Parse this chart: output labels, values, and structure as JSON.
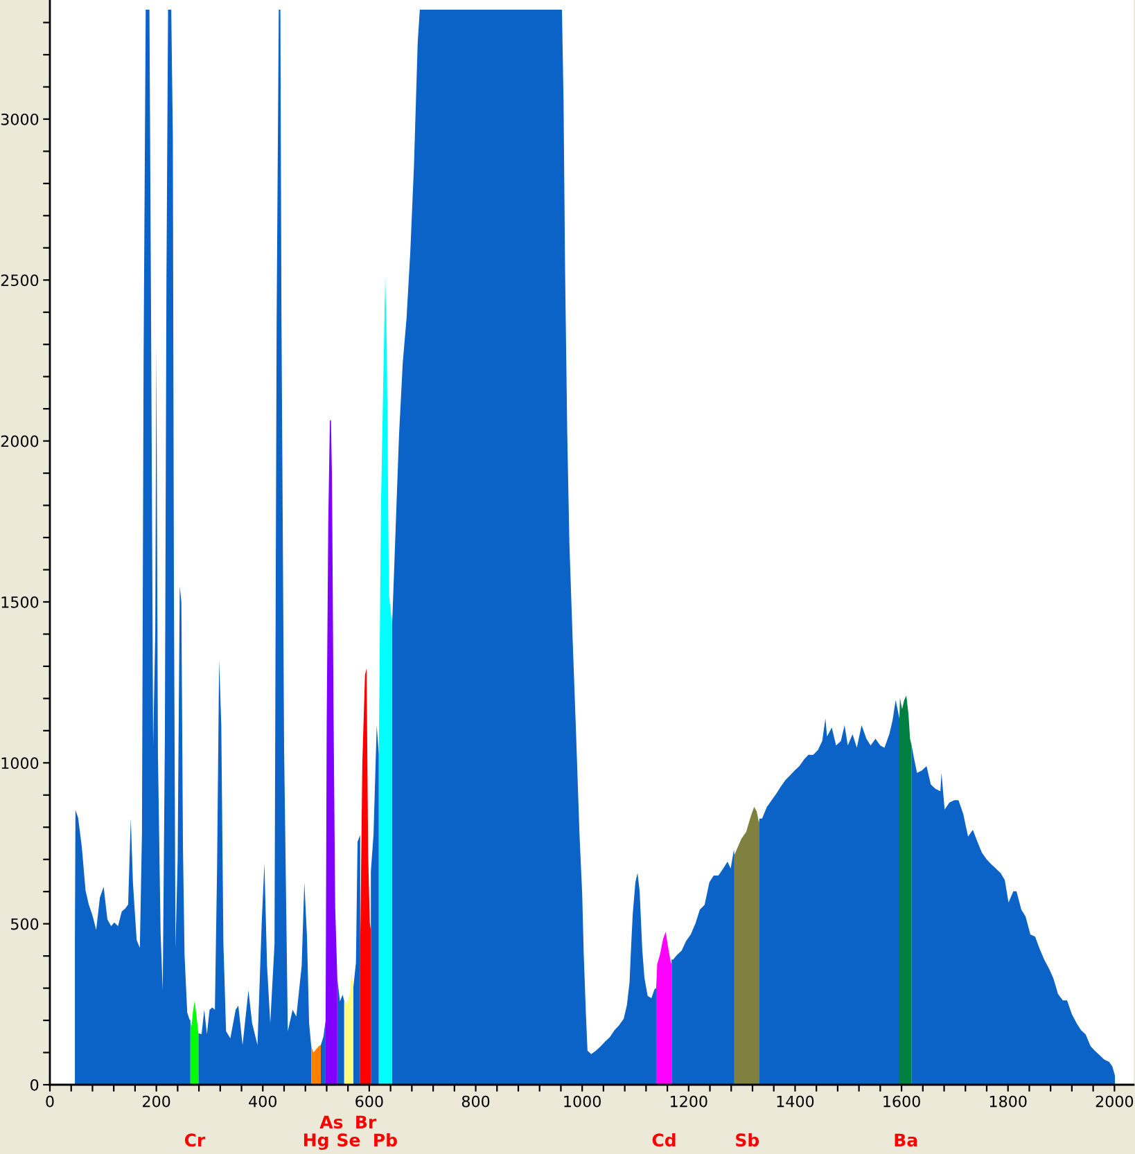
{
  "chart_data": {
    "type": "area",
    "xlim": [
      0,
      2036
    ],
    "ylim": [
      0,
      3370
    ],
    "xticks": [
      0,
      {
        "value": 40,
        "label": null
      },
      {
        "value": 80,
        "label": null
      },
      {
        "value": 120,
        "label": null
      },
      {
        "value": 160,
        "label": null
      },
      200,
      {
        "value": 240,
        "label": null
      },
      {
        "value": 280,
        "label": null
      },
      {
        "value": 320,
        "label": null
      },
      {
        "value": 360,
        "label": null
      },
      400,
      {
        "value": 440,
        "label": null
      },
      {
        "value": 480,
        "label": null
      },
      {
        "value": 520,
        "label": null
      },
      {
        "value": 560,
        "label": null
      },
      600,
      {
        "value": 640,
        "label": null
      },
      {
        "value": 680,
        "label": null
      },
      {
        "value": 720,
        "label": null
      },
      {
        "value": 760,
        "label": null
      },
      800,
      {
        "value": 840,
        "label": null
      },
      {
        "value": 880,
        "label": null
      },
      {
        "value": 920,
        "label": null
      },
      {
        "value": 960,
        "label": null
      },
      1000,
      {
        "value": 1040,
        "label": null
      },
      {
        "value": 1080,
        "label": null
      },
      {
        "value": 1120,
        "label": null
      },
      {
        "value": 1160,
        "label": null
      },
      1200,
      {
        "value": 1240,
        "label": null
      },
      {
        "value": 1280,
        "label": null
      },
      {
        "value": 1320,
        "label": null
      },
      {
        "value": 1360,
        "label": null
      },
      1400,
      {
        "value": 1440,
        "label": null
      },
      {
        "value": 1480,
        "label": null
      },
      {
        "value": 1520,
        "label": null
      },
      {
        "value": 1560,
        "label": null
      },
      1600,
      {
        "value": 1640,
        "label": null
      },
      {
        "value": 1680,
        "label": null
      },
      {
        "value": 1720,
        "label": null
      },
      {
        "value": 1760,
        "label": null
      },
      1800,
      {
        "value": 1840,
        "label": null
      },
      {
        "value": 1880,
        "label": null
      },
      {
        "value": 1920,
        "label": null
      },
      {
        "value": 1960,
        "label": null
      },
      2000
    ],
    "yticks": [
      0,
      {
        "value": 100,
        "label": null
      },
      {
        "value": 200,
        "label": null
      },
      {
        "value": 300,
        "label": null
      },
      {
        "value": 400,
        "label": null
      },
      500,
      {
        "value": 600,
        "label": null
      },
      {
        "value": 700,
        "label": null
      },
      {
        "value": 800,
        "label": null
      },
      {
        "value": 900,
        "label": null
      },
      1000,
      {
        "value": 1100,
        "label": null
      },
      {
        "value": 1200,
        "label": null
      },
      {
        "value": 1300,
        "label": null
      },
      {
        "value": 1400,
        "label": null
      },
      1500,
      {
        "value": 1600,
        "label": null
      },
      {
        "value": 1700,
        "label": null
      },
      {
        "value": 1800,
        "label": null
      },
      {
        "value": 1900,
        "label": null
      },
      2000,
      {
        "value": 2100,
        "label": null
      },
      {
        "value": 2200,
        "label": null
      },
      {
        "value": 2300,
        "label": null
      },
      {
        "value": 2400,
        "label": null
      },
      2500,
      {
        "value": 2600,
        "label": null
      },
      {
        "value": 2700,
        "label": null
      },
      {
        "value": 2800,
        "label": null
      },
      {
        "value": 2900,
        "label": null
      },
      3000,
      {
        "value": 3100,
        "label": null
      },
      {
        "value": 3200,
        "label": null
      },
      {
        "value": 3300,
        "label": null
      }
    ],
    "series": [
      {
        "color": "#0c63c7",
        "x": [
          47,
          48,
          53,
          60,
          67,
          73,
          80,
          87,
          94,
          101,
          108,
          115,
          121,
          128,
          135,
          142,
          147,
          152,
          156,
          163,
          169,
          173,
          176,
          180,
          187,
          190,
          194,
          198,
          200,
          203,
          208,
          212,
          216,
          219,
          222,
          228,
          231,
          233,
          236,
          240,
          244,
          247,
          250,
          253,
          258,
          262,
          264,
          270,
          279,
          285,
          290,
          295,
          300,
          305,
          310,
          314,
          318,
          322,
          326,
          331,
          339,
          349,
          354,
          362,
          373,
          380,
          390,
          398,
          403,
          408,
          414,
          422,
          426,
          430,
          433,
          435,
          440,
          447,
          456,
          463,
          473,
          478,
          483,
          487,
          491,
          500,
          509,
          514,
          518,
          529,
          540,
          545,
          550,
          553,
          560,
          570,
          575,
          578,
          583,
          593,
          603,
          608,
          614,
          618,
          630,
          643,
          649,
          656,
          663,
          670,
          677,
          684,
          691,
          695,
          962,
          965,
          968,
          972,
          976,
          982,
          988,
          995,
          1000,
          1003,
          1007,
          1010,
          1017,
          1026,
          1035,
          1043,
          1052,
          1061,
          1069,
          1078,
          1084,
          1089,
          1092,
          1095,
          1100,
          1104,
          1108,
          1113,
          1117,
          1123,
          1130,
          1136,
          1139,
          1150,
          1168,
          1171,
          1178,
          1187,
          1195,
          1204,
          1213,
          1221,
          1230,
          1239,
          1247,
          1256,
          1265,
          1273,
          1279,
          1285,
          1286,
          1310,
          1333,
          1338,
          1347,
          1356,
          1365,
          1373,
          1382,
          1391,
          1399,
          1408,
          1417,
          1425,
          1434,
          1443,
          1451,
          1457,
          1460,
          1469,
          1477,
          1486,
          1493,
          1499,
          1508,
          1516,
          1525,
          1534,
          1542,
          1551,
          1560,
          1568,
          1577,
          1583,
          1589,
          1596,
          1608,
          1619,
          1623,
          1629,
          1638,
          1647,
          1655,
          1664,
          1673,
          1675,
          1681,
          1690,
          1699,
          1707,
          1716,
          1725,
          1734,
          1742,
          1751,
          1760,
          1768,
          1777,
          1786,
          1794,
          1801,
          1810,
          1816,
          1825,
          1833,
          1842,
          1851,
          1859,
          1868,
          1877,
          1885,
          1894,
          1903,
          1911,
          1920,
          1929,
          1937,
          1946,
          1955,
          1963,
          1972,
          1981,
          1990,
          1996,
          2001
        ],
        "values": [
          450,
          853,
          830,
          738,
          603,
          560,
          526,
          481,
          582,
          615,
          514,
          493,
          504,
          493,
          538,
          548,
          560,
          827,
          628,
          450,
          425,
          785,
          2236,
          3340,
          3340,
          2414,
          1052,
          1409,
          2300,
          1027,
          471,
          293,
          1073,
          2503,
          3340,
          3340,
          2949,
          1540,
          424,
          700,
          1549,
          1500,
          738,
          403,
          225,
          204,
          200,
          null,
          160,
          157,
          233,
          157,
          233,
          240,
          233,
          663,
          1320,
          1116,
          437,
          166,
          144,
          233,
          246,
          123,
          293,
          191,
          123,
          505,
          688,
          369,
          191,
          437,
          2380,
          3340,
          3340,
          2402,
          1048,
          166,
          233,
          212,
          369,
          629,
          460,
          191,
          120,
          null,
          123,
          150,
          200,
          null,
          330,
          259,
          280,
          260,
          null,
          301,
          380,
          755,
          776,
          null,
          663,
          777,
          1116,
          1027,
          null,
          1430,
          1703,
          2020,
          2245,
          2380,
          2584,
          2855,
          3238,
          3340,
          3340,
          3057,
          2516,
          2020,
          1681,
          1388,
          1116,
          777,
          594,
          403,
          221,
          106,
          95,
          106,
          120,
          134,
          148,
          170,
          184,
          205,
          247,
          318,
          431,
          530,
          629,
          658,
          601,
          417,
          332,
          276,
          269,
          297,
          300,
          null,
          389,
          389,
          403,
          417,
          446,
          467,
          502,
          544,
          559,
          629,
          650,
          650,
          672,
          693,
          672,
          730,
          714,
          null,
          827,
          827,
          863,
          884,
          905,
          926,
          947,
          962,
          976,
          990,
          1011,
          1025,
          1025,
          1040,
          1068,
          1138,
          1082,
          1110,
          1054,
          1068,
          1117,
          1054,
          1089,
          1047,
          1117,
          1075,
          1054,
          1075,
          1054,
          1047,
          1089,
          1131,
          1195,
          1138,
          null,
          1054,
          1018,
          969,
          976,
          990,
          933,
          919,
          912,
          969,
          855,
          877,
          884,
          884,
          841,
          771,
          792,
          757,
          721,
          700,
          686,
          672,
          658,
          636,
          566,
          601,
          601,
          544,
          523,
          467,
          460,
          424,
          389,
          361,
          332,
          282,
          262,
          262,
          219,
          191,
          170,
          156,
          120,
          106,
          92,
          78,
          71,
          57,
          28
        ]
      },
      {
        "color": "#00ff00",
        "x": [
          264,
          266,
          269,
          272,
          275,
          279
        ],
        "values": [
          200,
          180,
          230,
          260,
          220,
          160
        ]
      },
      {
        "color": "#ff8000",
        "x": [
          491,
          495,
          500,
          505,
          509
        ],
        "values": [
          120,
          100,
          110,
          120,
          123
        ]
      },
      {
        "color": "#8000ff",
        "x": [
          518,
          520,
          523,
          526,
          528,
          530,
          533,
          536,
          540
        ],
        "values": [
          200,
          1116,
          1748,
          2062,
          2066,
          1884,
          1137,
          552,
          330
        ]
      },
      {
        "color": "#ffff80",
        "x": [
          553,
          558,
          563,
          567,
          570
        ],
        "values": [
          260,
          250,
          280,
          348,
          301
        ]
      },
      {
        "color": "#ff0000",
        "x": [
          583,
          587,
          592,
          595,
          598,
          601,
          603
        ],
        "values": [
          437,
          1001,
          1273,
          1294,
          709,
          505,
          480
        ]
      },
      {
        "color": "#00ffff",
        "x": [
          618,
          622,
          626,
          630,
          633,
          637,
          643
        ],
        "values": [
          1027,
          1794,
          2154,
          2510,
          2290,
          1523,
          1430
        ]
      },
      {
        "color": "#ff00ff",
        "x": [
          1139,
          1141,
          1146,
          1152,
          1157,
          1161,
          1167,
          1168
        ],
        "values": [
          300,
          375,
          403,
          453,
          475,
          431,
          375,
          389
        ]
      },
      {
        "color": "#808040",
        "x": [
          1286,
          1299,
          1308,
          1317,
          1323,
          1328,
          1332,
          1333
        ],
        "values": [
          714,
          764,
          785,
          835,
          863,
          849,
          815,
          827
        ]
      },
      {
        "color": "#008040",
        "x": [
          1596,
          1597,
          1601,
          1605,
          1609,
          1613,
          1616,
          1619
        ],
        "values": [
          1138,
          1202,
          1167,
          1195,
          1209,
          1152,
          1075,
          1054
        ]
      }
    ],
    "annotations": [
      {
        "text": "Cr",
        "x": 272,
        "y": 0
      },
      {
        "text": "Hg",
        "x": 500,
        "y": 0
      },
      {
        "text": "As",
        "x": 529,
        "y": 0
      },
      {
        "text": "Se",
        "x": 561,
        "y": 0
      },
      {
        "text": "Br",
        "x": 593,
        "y": 0
      },
      {
        "text": "Pb",
        "x": 630,
        "y": 0
      },
      {
        "text": "Cd",
        "x": 1154,
        "y": 0
      },
      {
        "text": "Sb",
        "x": 1310,
        "y": 0
      },
      {
        "text": "Ba",
        "x": 1608,
        "y": 0
      }
    ]
  }
}
